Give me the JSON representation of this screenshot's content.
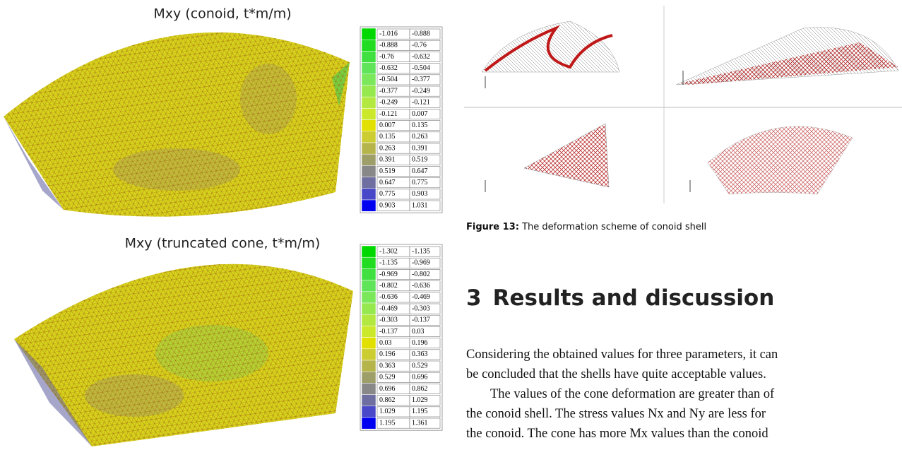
{
  "left_panels": [
    {
      "title": "Mxy (conoid, t*m/m)",
      "legend": [
        [
          "-1.016",
          "-0.888"
        ],
        [
          "-0.888",
          "-0.76"
        ],
        [
          "-0.76",
          "-0.632"
        ],
        [
          "-0.632",
          "-0.504"
        ],
        [
          "-0.504",
          "-0.377"
        ],
        [
          "-0.377",
          "-0.249"
        ],
        [
          "-0.249",
          "-0.121"
        ],
        [
          "-0.121",
          "0.007"
        ],
        [
          "0.007",
          "0.135"
        ],
        [
          "0.135",
          "0.263"
        ],
        [
          "0.263",
          "0.391"
        ],
        [
          "0.391",
          "0.519"
        ],
        [
          "0.519",
          "0.647"
        ],
        [
          "0.647",
          "0.775"
        ],
        [
          "0.775",
          "0.903"
        ],
        [
          "0.903",
          "1.031"
        ]
      ]
    },
    {
      "title": "Mxy (truncated cone, t*m/m)",
      "legend": [
        [
          "-1.302",
          "-1.135"
        ],
        [
          "-1.135",
          "-0.969"
        ],
        [
          "-0.969",
          "-0.802"
        ],
        [
          "-0.802",
          "-0.636"
        ],
        [
          "-0.636",
          "-0.469"
        ],
        [
          "-0.469",
          "-0.303"
        ],
        [
          "-0.303",
          "-0.137"
        ],
        [
          "-0.137",
          "0.03"
        ],
        [
          "0.03",
          "0.196"
        ],
        [
          "0.196",
          "0.363"
        ],
        [
          "0.363",
          "0.529"
        ],
        [
          "0.529",
          "0.696"
        ],
        [
          "0.696",
          "0.862"
        ],
        [
          "0.862",
          "1.029"
        ],
        [
          "1.029",
          "1.195"
        ],
        [
          "1.195",
          "1.361"
        ]
      ]
    }
  ],
  "figure": {
    "caption_label": "Figure 13:",
    "caption_text": "The deformation scheme of conoid shell"
  },
  "section": {
    "number": "3",
    "title": "Results and discussion"
  },
  "paragraphs": [
    [
      "Considering the obtained values for three parameters, it can",
      "be concluded that the shells have quite acceptable values."
    ],
    [
      "The values of the cone deformation are greater than of",
      "the conoid shell. The stress values Nx and Ny are less for",
      "the conoid. The cone has more Mx values than the conoid"
    ]
  ]
}
